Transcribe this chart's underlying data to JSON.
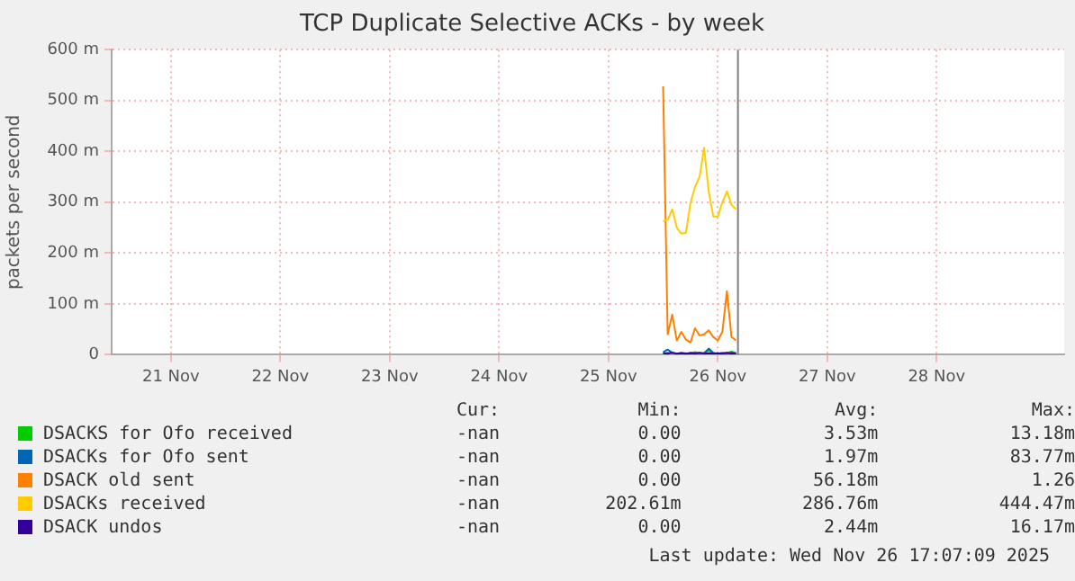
{
  "chart_data": {
    "type": "line",
    "title": "TCP Duplicate Selective ACKs - by week",
    "ylabel": "packets per second",
    "xlim": [
      "2025-11-20T23:00",
      "2025-11-29T16:00"
    ],
    "xticks": [
      {
        "value": "2025-11-21T12:00",
        "label": "21 Nov"
      },
      {
        "value": "2025-11-22T12:00",
        "label": "22 Nov"
      },
      {
        "value": "2025-11-23T12:00",
        "label": "23 Nov"
      },
      {
        "value": "2025-11-24T12:00",
        "label": "24 Nov"
      },
      {
        "value": "2025-11-25T12:00",
        "label": "25 Nov"
      },
      {
        "value": "2025-11-26T12:00",
        "label": "26 Nov"
      },
      {
        "value": "2025-11-27T12:00",
        "label": "27 Nov"
      },
      {
        "value": "2025-11-28T12:00",
        "label": "28 Nov"
      }
    ],
    "ylim": [
      0,
      600
    ],
    "yticks": [
      0,
      {
        "value": 100,
        "label": "100 m"
      },
      {
        "value": 200,
        "label": "200 m"
      },
      {
        "value": 300,
        "label": "300 m"
      },
      {
        "value": 400,
        "label": "400 m"
      },
      {
        "value": 500,
        "label": "500 m"
      },
      {
        "value": 600,
        "label": "600 m"
      }
    ],
    "x": [
      "2025-11-26T00:00",
      "2025-11-26T01:00",
      "2025-11-26T02:00",
      "2025-11-26T03:00",
      "2025-11-26T04:00",
      "2025-11-26T05:00",
      "2025-11-26T06:00",
      "2025-11-26T07:00",
      "2025-11-26T08:00",
      "2025-11-26T09:00",
      "2025-11-26T10:00",
      "2025-11-26T11:00",
      "2025-11-26T12:00",
      "2025-11-26T13:00",
      "2025-11-26T14:00",
      "2025-11-26T15:00",
      "2025-11-26T16:00"
    ],
    "series": [
      {
        "name": "DSACKS for Ofo received",
        "color": "#00cc00",
        "values": [
          2,
          4,
          3,
          2,
          4,
          3,
          2,
          5,
          3,
          4,
          8,
          3,
          2,
          4,
          3,
          6,
          3
        ]
      },
      {
        "name": "DSACKs for Ofo sent",
        "color": "#0066b3",
        "values": [
          5,
          10,
          4,
          2,
          3,
          2,
          4,
          3,
          2,
          3,
          12,
          4,
          2,
          3,
          2,
          4,
          2
        ]
      },
      {
        "name": "DSACK old sent",
        "color": "#ff8000",
        "values": [
          528,
          40,
          79,
          28,
          45,
          30,
          24,
          52,
          38,
          40,
          48,
          35,
          28,
          45,
          125,
          35,
          28
        ]
      },
      {
        "name": "DSACKs received",
        "color": "#ffcc00",
        "values": [
          263,
          265,
          286,
          250,
          238,
          240,
          298,
          330,
          350,
          407,
          321,
          272,
          272,
          300,
          321,
          295,
          286
        ]
      },
      {
        "name": "DSACK undos",
        "color": "#330099",
        "values": [
          3,
          2,
          4,
          2,
          3,
          2,
          3,
          2,
          4,
          2,
          3,
          2,
          3,
          2,
          4,
          2,
          3
        ]
      }
    ],
    "ref_lines": [
      {
        "axis": "x",
        "value": "2025-11-26T16:25",
        "color": "#7f7f7f"
      }
    ],
    "grid": true,
    "legend": "bottom",
    "annotations": [
      "Cur:",
      "Min:",
      "Avg:",
      "Max:",
      "-nan",
      "0.00",
      "3.53m",
      "13.18m",
      "-nan",
      "0.00",
      "1.97m",
      "83.77m",
      "-nan",
      "0.00",
      "56.18m",
      "1.26",
      "-nan",
      "202.61m",
      "286.76m",
      "444.47m",
      "-nan",
      "0.00",
      "2.44m",
      "16.17m",
      "Last update: Wed Nov 26 17:07:09 2025"
    ]
  }
}
